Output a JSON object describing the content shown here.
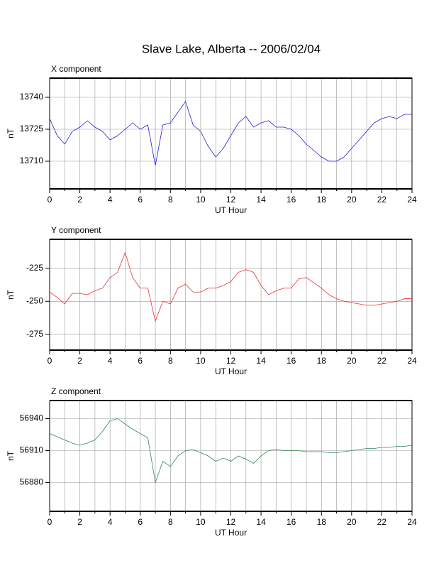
{
  "title": "Slave Lake, Alberta -- 2006/02/04",
  "chart_data": [
    {
      "type": "line",
      "title": "X component",
      "x_label": "UT Hour",
      "y_label": "nT",
      "xlim": [
        0,
        24
      ],
      "xticks": [
        0,
        2,
        4,
        6,
        8,
        10,
        12,
        14,
        16,
        18,
        20,
        22,
        24
      ],
      "xminorticks": [
        1,
        3,
        5,
        7,
        9,
        11,
        13,
        15,
        17,
        19,
        21,
        23
      ],
      "ylim": [
        13697,
        13749
      ],
      "yticks": [
        13710,
        13725,
        13740
      ],
      "grid": true,
      "x": [
        0,
        0.5,
        1,
        1.5,
        2,
        2.5,
        3,
        3.5,
        4,
        4.5,
        5,
        5.5,
        6,
        6.5,
        7,
        7.5,
        8,
        8.5,
        9,
        9.5,
        10,
        10.5,
        11,
        11.5,
        12,
        12.5,
        13,
        13.5,
        14,
        14.5,
        15,
        15.5,
        16,
        16.5,
        17,
        17.5,
        18,
        18.5,
        19,
        19.5,
        20,
        20.5,
        21,
        21.5,
        22,
        22.5,
        23,
        23.5,
        24
      ],
      "series": [
        {
          "name": "X",
          "color": "#2020e0",
          "values": [
            13730,
            13722,
            13718,
            13724,
            13726,
            13729,
            13726,
            13724,
            13720,
            13722,
            13725,
            13728,
            13725,
            13727,
            13708,
            13727,
            13728,
            13733,
            13738,
            13727,
            13724,
            13717,
            13712,
            13716,
            13722,
            13728,
            13731,
            13726,
            13728,
            13729,
            13726,
            13726,
            13725,
            13722,
            13718,
            13715,
            13712,
            13710,
            13710,
            13712,
            13716,
            13720,
            13724,
            13728,
            13730,
            13731,
            13730,
            13732,
            13732
          ]
        }
      ]
    },
    {
      "type": "line",
      "title": "Y component",
      "x_label": "UT Hour",
      "y_label": "nT",
      "xlim": [
        0,
        24
      ],
      "xticks": [
        0,
        2,
        4,
        6,
        8,
        10,
        12,
        14,
        16,
        18,
        20,
        22,
        24
      ],
      "xminorticks": [
        1,
        3,
        5,
        7,
        9,
        11,
        13,
        15,
        17,
        19,
        21,
        23
      ],
      "ylim": [
        -287,
        -203
      ],
      "yticks": [
        -275,
        -250,
        -225
      ],
      "grid": true,
      "x": [
        0,
        0.5,
        1,
        1.5,
        2,
        2.5,
        3,
        3.5,
        4,
        4.5,
        5,
        5.5,
        6,
        6.5,
        7,
        7.5,
        8,
        8.5,
        9,
        9.5,
        10,
        10.5,
        11,
        11.5,
        12,
        12.5,
        13,
        13.5,
        14,
        14.5,
        15,
        15.5,
        16,
        16.5,
        17,
        17.5,
        18,
        18.5,
        19,
        19.5,
        20,
        20.5,
        21,
        21.5,
        22,
        22.5,
        23,
        23.5,
        24
      ],
      "series": [
        {
          "name": "Y",
          "color": "#e83030",
          "values": [
            -243,
            -247,
            -252,
            -244,
            -244,
            -245,
            -242,
            -240,
            -232,
            -228,
            -213,
            -232,
            -240,
            -240,
            -265,
            -250,
            -252,
            -240,
            -237,
            -243,
            -243,
            -240,
            -240,
            -238,
            -235,
            -228,
            -226,
            -228,
            -238,
            -245,
            -242,
            -240,
            -240,
            -233,
            -232,
            -236,
            -240,
            -245,
            -248,
            -250,
            -251,
            -252,
            -253,
            -253,
            -252,
            -251,
            -250,
            -248,
            -248
          ]
        }
      ]
    },
    {
      "type": "line",
      "title": "Z component",
      "x_label": "UT Hour",
      "y_label": "nT",
      "xlim": [
        0,
        24
      ],
      "xticks": [
        0,
        2,
        4,
        6,
        8,
        10,
        12,
        14,
        16,
        18,
        20,
        22,
        24
      ],
      "xminorticks": [
        1,
        3,
        5,
        7,
        9,
        11,
        13,
        15,
        17,
        19,
        21,
        23
      ],
      "ylim": [
        56853,
        56957
      ],
      "yticks": [
        56880,
        56910,
        56940
      ],
      "grid": true,
      "x": [
        0,
        0.5,
        1,
        1.5,
        2,
        2.5,
        3,
        3.5,
        4,
        4.5,
        5,
        5.5,
        6,
        6.5,
        7,
        7.5,
        8,
        8.5,
        9,
        9.5,
        10,
        10.5,
        11,
        11.5,
        12,
        12.5,
        13,
        13.5,
        14,
        14.5,
        15,
        15.5,
        16,
        16.5,
        17,
        17.5,
        18,
        18.5,
        19,
        19.5,
        20,
        20.5,
        21,
        21.5,
        22,
        22.5,
        23,
        23.5,
        24
      ],
      "series": [
        {
          "name": "Z",
          "color": "#2e8b57",
          "values": [
            56926,
            56923,
            56920,
            56917,
            56915,
            56917,
            56920,
            56928,
            56938,
            56940,
            56935,
            56930,
            56926,
            56922,
            56880,
            56900,
            56895,
            56905,
            56910,
            56911,
            56908,
            56905,
            56900,
            56903,
            56900,
            56905,
            56902,
            56898,
            56905,
            56910,
            56911,
            56910,
            56910,
            56910,
            56909,
            56909,
            56909,
            56908,
            56908,
            56909,
            56910,
            56911,
            56912,
            56912,
            56913,
            56913,
            56914,
            56914,
            56915
          ]
        }
      ]
    }
  ]
}
